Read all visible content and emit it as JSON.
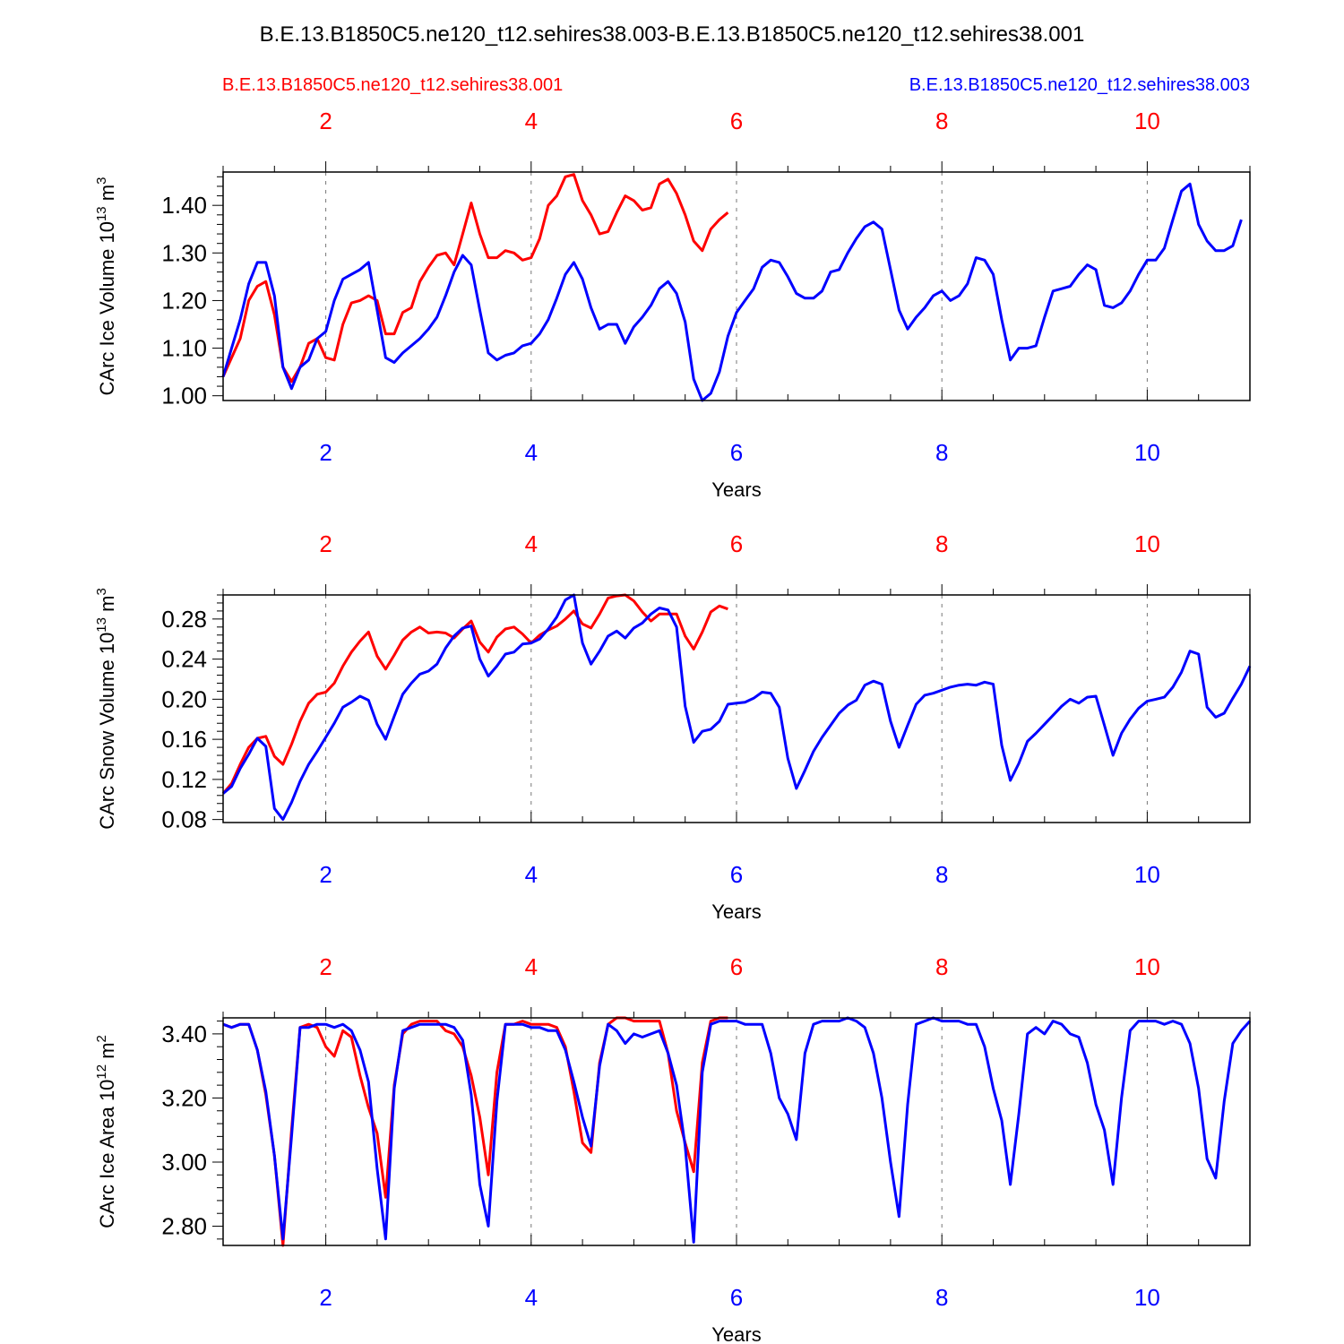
{
  "figure": {
    "title": "B.E.13.B1850C5.ne120_t12.sehires38.003-B.E.13.B1850C5.ne120_t12.sehires38.001",
    "legend_left": "B.E.13.B1850C5.ne120_t12.sehires38.001",
    "legend_right": "B.E.13.B1850C5.ne120_t12.sehires38.003",
    "colors": {
      "red": "#ff0000",
      "blue": "#0000ff",
      "axis": "#000000",
      "grid": "#777777"
    }
  },
  "chart_data": [
    {
      "type": "line",
      "ylabel": "CArc Ice Volume 10",
      "ylabel_exp": "13",
      "ylabel_unit": " m",
      "ylabel_unit_exp": "3",
      "xlabel": "Years",
      "xlim": [
        1.0,
        11.0
      ],
      "ylim": [
        0.99,
        1.47
      ],
      "xticks": [
        "2",
        "4",
        "6",
        "8",
        "10"
      ],
      "yticks": [
        "1.00",
        "1.10",
        "1.20",
        "1.30",
        "1.40"
      ],
      "grid_x": true,
      "series": [
        {
          "name": "B.E.13.B1850C5.ne120_t12.sehires38.001",
          "color": "#ff0000",
          "x_start": 1.0,
          "x_step": 0.08333,
          "values": [
            1.04,
            1.08,
            1.12,
            1.2,
            1.23,
            1.24,
            1.17,
            1.06,
            1.03,
            1.06,
            1.11,
            1.12,
            1.08,
            1.075,
            1.15,
            1.195,
            1.2,
            1.21,
            1.2,
            1.13,
            1.13,
            1.175,
            1.185,
            1.24,
            1.27,
            1.295,
            1.3,
            1.275,
            1.34,
            1.405,
            1.34,
            1.29,
            1.29,
            1.305,
            1.3,
            1.285,
            1.29,
            1.33,
            1.4,
            1.42,
            1.46,
            1.465,
            1.41,
            1.38,
            1.34,
            1.345,
            1.385,
            1.42,
            1.41,
            1.39,
            1.395,
            1.445,
            1.455,
            1.425,
            1.38,
            1.325,
            1.305,
            1.35,
            1.37,
            1.385
          ]
        },
        {
          "name": "B.E.13.B1850C5.ne120_t12.sehires38.003",
          "color": "#0000ff",
          "x_start": 1.0,
          "x_step": 0.08333,
          "values": [
            1.04,
            1.1,
            1.16,
            1.235,
            1.28,
            1.28,
            1.21,
            1.06,
            1.015,
            1.06,
            1.075,
            1.12,
            1.135,
            1.2,
            1.245,
            1.255,
            1.265,
            1.28,
            1.18,
            1.08,
            1.07,
            1.09,
            1.105,
            1.12,
            1.14,
            1.165,
            1.21,
            1.26,
            1.295,
            1.275,
            1.18,
            1.09,
            1.075,
            1.085,
            1.09,
            1.105,
            1.11,
            1.13,
            1.16,
            1.205,
            1.255,
            1.28,
            1.245,
            1.185,
            1.14,
            1.15,
            1.15,
            1.11,
            1.145,
            1.165,
            1.19,
            1.225,
            1.24,
            1.215,
            1.155,
            1.035,
            0.99,
            1.005,
            1.05,
            1.125,
            1.175,
            1.2,
            1.225,
            1.27,
            1.285,
            1.28,
            1.25,
            1.215,
            1.205,
            1.205,
            1.22,
            1.26,
            1.265,
            1.3,
            1.33,
            1.355,
            1.365,
            1.35,
            1.265,
            1.18,
            1.14,
            1.165,
            1.185,
            1.21,
            1.22,
            1.2,
            1.21,
            1.235,
            1.29,
            1.285,
            1.255,
            1.16,
            1.075,
            1.1,
            1.1,
            1.105,
            1.165,
            1.22,
            1.225,
            1.23,
            1.255,
            1.275,
            1.265,
            1.19,
            1.185,
            1.195,
            1.22,
            1.255,
            1.285,
            1.285,
            1.31,
            1.37,
            1.43,
            1.445,
            1.36,
            1.325,
            1.305,
            1.305,
            1.315,
            1.37
          ]
        }
      ]
    },
    {
      "type": "line",
      "ylabel": "CArc Snow Volume 10",
      "ylabel_exp": "13",
      "ylabel_unit": " m",
      "ylabel_unit_exp": "3",
      "xlabel": "Years",
      "xlim": [
        1.0,
        11.0
      ],
      "ylim": [
        0.077,
        0.304
      ],
      "xticks": [
        "2",
        "4",
        "6",
        "8",
        "10"
      ],
      "yticks": [
        "0.08",
        "0.12",
        "0.16",
        "0.20",
        "0.24",
        "0.28"
      ],
      "grid_x": true,
      "series": [
        {
          "name": "B.E.13.B1850C5.ne120_t12.sehires38.001",
          "color": "#ff0000",
          "x_start": 1.0,
          "x_step": 0.08333,
          "values": [
            0.106,
            0.116,
            0.135,
            0.152,
            0.161,
            0.163,
            0.143,
            0.135,
            0.155,
            0.178,
            0.196,
            0.205,
            0.207,
            0.216,
            0.233,
            0.247,
            0.258,
            0.267,
            0.243,
            0.23,
            0.244,
            0.259,
            0.267,
            0.272,
            0.266,
            0.267,
            0.266,
            0.261,
            0.27,
            0.278,
            0.257,
            0.247,
            0.262,
            0.27,
            0.272,
            0.265,
            0.256,
            0.264,
            0.269,
            0.273,
            0.28,
            0.288,
            0.275,
            0.271,
            0.285,
            0.301,
            0.303,
            0.304,
            0.298,
            0.287,
            0.278,
            0.285,
            0.285,
            0.285,
            0.263,
            0.25,
            0.267,
            0.287,
            0.293,
            0.29
          ]
        },
        {
          "name": "B.E.13.B1850C5.ne120_t12.sehires38.003",
          "color": "#0000ff",
          "x_start": 1.0,
          "x_step": 0.08333,
          "values": [
            0.106,
            0.113,
            0.131,
            0.145,
            0.161,
            0.153,
            0.091,
            0.08,
            0.097,
            0.118,
            0.135,
            0.148,
            0.162,
            0.176,
            0.192,
            0.197,
            0.203,
            0.199,
            0.175,
            0.16,
            0.183,
            0.205,
            0.216,
            0.225,
            0.228,
            0.235,
            0.251,
            0.263,
            0.271,
            0.273,
            0.24,
            0.223,
            0.233,
            0.245,
            0.247,
            0.255,
            0.256,
            0.26,
            0.27,
            0.282,
            0.299,
            0.304,
            0.256,
            0.235,
            0.248,
            0.263,
            0.268,
            0.261,
            0.271,
            0.276,
            0.285,
            0.291,
            0.289,
            0.272,
            0.193,
            0.157,
            0.168,
            0.17,
            0.178,
            0.195,
            0.196,
            0.197,
            0.201,
            0.207,
            0.206,
            0.192,
            0.141,
            0.111,
            0.129,
            0.148,
            0.162,
            0.174,
            0.186,
            0.194,
            0.199,
            0.214,
            0.218,
            0.215,
            0.178,
            0.152,
            0.174,
            0.195,
            0.204,
            0.206,
            0.209,
            0.212,
            0.214,
            0.215,
            0.214,
            0.217,
            0.215,
            0.154,
            0.119,
            0.136,
            0.158,
            0.166,
            0.175,
            0.184,
            0.193,
            0.2,
            0.196,
            0.202,
            0.203,
            0.174,
            0.144,
            0.166,
            0.18,
            0.191,
            0.198,
            0.2,
            0.202,
            0.212,
            0.227,
            0.248,
            0.245,
            0.192,
            0.182,
            0.186,
            0.201,
            0.215,
            0.233
          ]
        }
      ]
    },
    {
      "type": "line",
      "ylabel": "CArc Ice Area 10",
      "ylabel_exp": "12",
      "ylabel_unit": " m",
      "ylabel_unit_exp": "2",
      "xlabel": "Years",
      "xlim": [
        1.0,
        11.0
      ],
      "ylim": [
        2.74,
        3.45
      ],
      "xticks": [
        "2",
        "4",
        "6",
        "8",
        "10"
      ],
      "yticks": [
        "2.80",
        "3.00",
        "3.20",
        "3.40"
      ],
      "grid_x": true,
      "series": [
        {
          "name": "B.E.13.B1850C5.ne120_t12.sehires38.001",
          "color": "#ff0000",
          "x_start": 1.0,
          "x_step": 0.08333,
          "values": [
            3.43,
            3.42,
            3.43,
            3.43,
            3.35,
            3.21,
            3.02,
            2.74,
            3.1,
            3.42,
            3.43,
            3.42,
            3.36,
            3.33,
            3.41,
            3.39,
            3.27,
            3.17,
            3.09,
            2.89,
            3.24,
            3.4,
            3.43,
            3.44,
            3.44,
            3.44,
            3.41,
            3.4,
            3.36,
            3.27,
            3.14,
            2.96,
            3.28,
            3.43,
            3.43,
            3.44,
            3.43,
            3.43,
            3.43,
            3.42,
            3.36,
            3.22,
            3.06,
            3.03,
            3.31,
            3.43,
            3.45,
            3.45,
            3.44,
            3.44,
            3.44,
            3.44,
            3.34,
            3.16,
            3.06,
            2.97,
            3.31,
            3.44,
            3.45,
            3.45
          ]
        },
        {
          "name": "B.E.13.B1850C5.ne120_t12.sehires38.003",
          "color": "#0000ff",
          "x_start": 1.0,
          "x_step": 0.08333,
          "values": [
            3.43,
            3.42,
            3.43,
            3.43,
            3.35,
            3.22,
            3.02,
            2.76,
            3.08,
            3.42,
            3.42,
            3.43,
            3.43,
            3.42,
            3.43,
            3.41,
            3.35,
            3.25,
            2.98,
            2.76,
            3.23,
            3.41,
            3.42,
            3.43,
            3.43,
            3.43,
            3.43,
            3.42,
            3.38,
            3.21,
            2.93,
            2.8,
            3.19,
            3.43,
            3.43,
            3.43,
            3.42,
            3.42,
            3.41,
            3.41,
            3.35,
            3.25,
            3.14,
            3.05,
            3.3,
            3.43,
            3.41,
            3.37,
            3.4,
            3.39,
            3.4,
            3.41,
            3.34,
            3.24,
            3.05,
            2.75,
            3.28,
            3.43,
            3.44,
            3.44,
            3.44,
            3.43,
            3.43,
            3.43,
            3.34,
            3.2,
            3.15,
            3.07,
            3.34,
            3.43,
            3.44,
            3.44,
            3.44,
            3.45,
            3.44,
            3.42,
            3.34,
            3.2,
            3.0,
            2.83,
            3.18,
            3.43,
            3.44,
            3.45,
            3.44,
            3.44,
            3.44,
            3.43,
            3.43,
            3.36,
            3.23,
            3.13,
            2.93,
            3.15,
            3.4,
            3.42,
            3.4,
            3.44,
            3.43,
            3.4,
            3.39,
            3.31,
            3.18,
            3.1,
            2.93,
            3.2,
            3.41,
            3.44,
            3.44,
            3.44,
            3.43,
            3.44,
            3.43,
            3.37,
            3.23,
            3.01,
            2.95,
            3.19,
            3.37,
            3.41,
            3.44
          ]
        }
      ]
    }
  ]
}
